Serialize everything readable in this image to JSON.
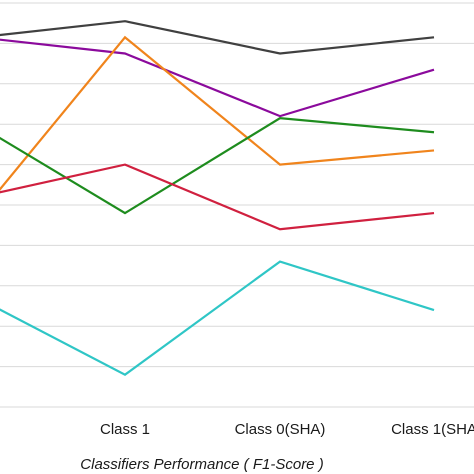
{
  "chart_data": {
    "type": "line",
    "categories": [
      "",
      "Class 1",
      "Class 0(SHA)",
      "Class 1(SHA"
    ],
    "xlabel": "Classifiers Performance ( F1-Score )",
    "ylabel": "",
    "ylim": [
      0,
      1
    ],
    "grid": true,
    "gridlines": [
      0.0,
      0.1,
      0.2,
      0.3,
      0.4,
      0.5,
      0.6,
      0.7,
      0.8,
      0.9,
      1.0
    ],
    "series": [
      {
        "color": "#404040",
        "values": [
          0.92,
          0.955,
          0.875,
          0.915
        ]
      },
      {
        "color": "#8b0a9c",
        "values": [
          0.91,
          0.875,
          0.72,
          0.835
        ]
      },
      {
        "color": "#f0841c",
        "values": [
          0.53,
          0.915,
          0.6,
          0.635
        ]
      },
      {
        "color": "#1e8c1e",
        "values": [
          0.67,
          0.48,
          0.715,
          0.68
        ]
      },
      {
        "color": "#d0203f",
        "values": [
          0.53,
          0.6,
          0.44,
          0.48
        ]
      },
      {
        "color": "#2fc6c6",
        "values": [
          0.245,
          0.08,
          0.36,
          0.24
        ]
      }
    ]
  }
}
